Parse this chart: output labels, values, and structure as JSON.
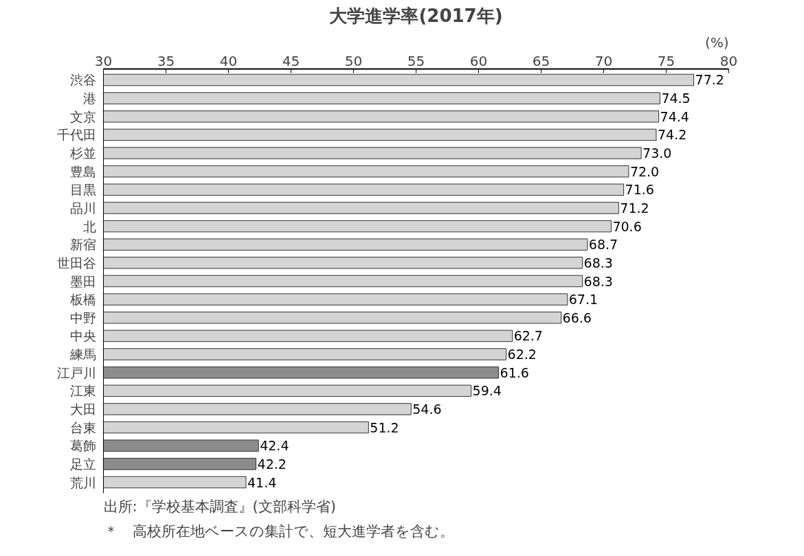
{
  "chart_data": {
    "type": "bar",
    "orientation": "horizontal",
    "title": "大学進学率(2017年)",
    "xlabel": "(%)",
    "categories": [
      "渋谷",
      "港",
      "文京",
      "千代田",
      "杉並",
      "豊島",
      "目黒",
      "品川",
      "北",
      "新宿",
      "世田谷",
      "墨田",
      "板橋",
      "中野",
      "中央",
      "練馬",
      "江戸川",
      "江東",
      "大田",
      "台東",
      "葛飾",
      "足立",
      "荒川"
    ],
    "values": [
      77.2,
      74.5,
      74.4,
      74.2,
      73.0,
      72.0,
      71.6,
      71.2,
      70.6,
      68.7,
      68.3,
      68.3,
      67.1,
      66.6,
      62.7,
      62.2,
      61.6,
      59.4,
      54.6,
      51.2,
      42.4,
      42.2,
      41.4
    ],
    "colors": [
      "#d4d4d4",
      "#d4d4d4",
      "#d4d4d4",
      "#d4d4d4",
      "#d4d4d4",
      "#d4d4d4",
      "#d4d4d4",
      "#d4d4d4",
      "#d4d4d4",
      "#d4d4d4",
      "#d4d4d4",
      "#d4d4d4",
      "#d4d4d4",
      "#d4d4d4",
      "#d4d4d4",
      "#d4d4d4",
      "#8c8c8c",
      "#d4d4d4",
      "#d4d4d4",
      "#d4d4d4",
      "#8c8c8c",
      "#8c8c8c",
      "#d4d4d4"
    ],
    "value_labels": [
      "77.2",
      "74.5",
      "74.4",
      "74.2",
      "73.0",
      "72.0",
      "71.6",
      "71.2",
      "70.6",
      "68.7",
      "68.3",
      "68.3",
      "67.1",
      "66.6",
      "62.7",
      "62.2",
      "61.6",
      "59.4",
      "54.6",
      "51.2",
      "42.4",
      "42.2",
      "41.4"
    ],
    "xlim": [
      30,
      80
    ],
    "xticks": [
      30,
      35,
      40,
      45,
      50,
      55,
      60,
      65,
      70,
      75,
      80
    ],
    "grid": false,
    "annotations": [
      "出所:『学校基本調査』(文部科学省)",
      "＊　高校所在地ベースの集計で、短大進学者を含む。"
    ]
  }
}
